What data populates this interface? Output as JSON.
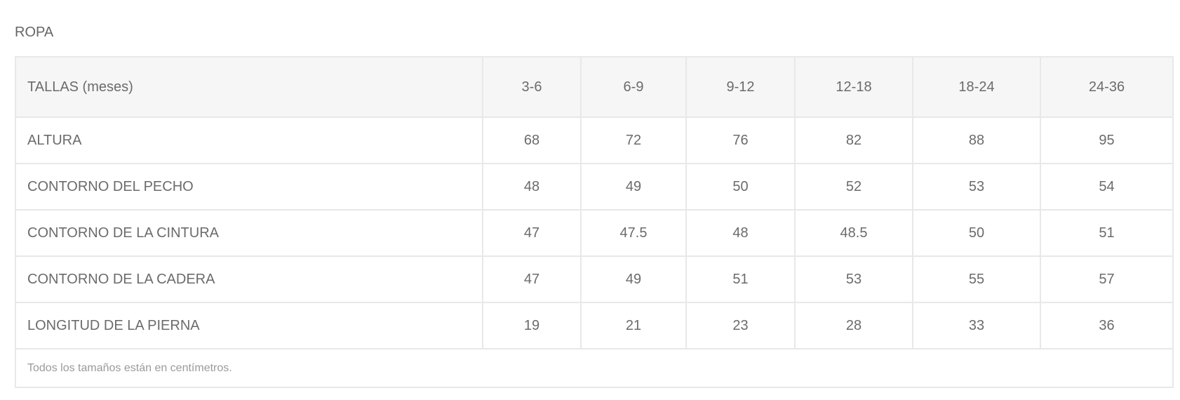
{
  "title": "ROPA",
  "table": {
    "header_label": "TALLAS (meses)",
    "sizes": [
      "3-6",
      "6-9",
      "9-12",
      "12-18",
      "18-24",
      "24-36"
    ],
    "rows": [
      {
        "label": "ALTURA",
        "values": [
          "68",
          "72",
          "76",
          "82",
          "88",
          "95"
        ]
      },
      {
        "label": "CONTORNO DEL PECHO",
        "values": [
          "48",
          "49",
          "50",
          "52",
          "53",
          "54"
        ]
      },
      {
        "label": "CONTORNO DE LA CINTURA",
        "values": [
          "47",
          "47.5",
          "48",
          "48.5",
          "50",
          "51"
        ]
      },
      {
        "label": "CONTORNO DE LA CADERA",
        "values": [
          "47",
          "49",
          "51",
          "53",
          "55",
          "57"
        ]
      },
      {
        "label": "LONGITUD DE LA PIERNA",
        "values": [
          "19",
          "21",
          "23",
          "28",
          "33",
          "36"
        ]
      }
    ],
    "note": "Todos los tamaños están en centímetros."
  }
}
